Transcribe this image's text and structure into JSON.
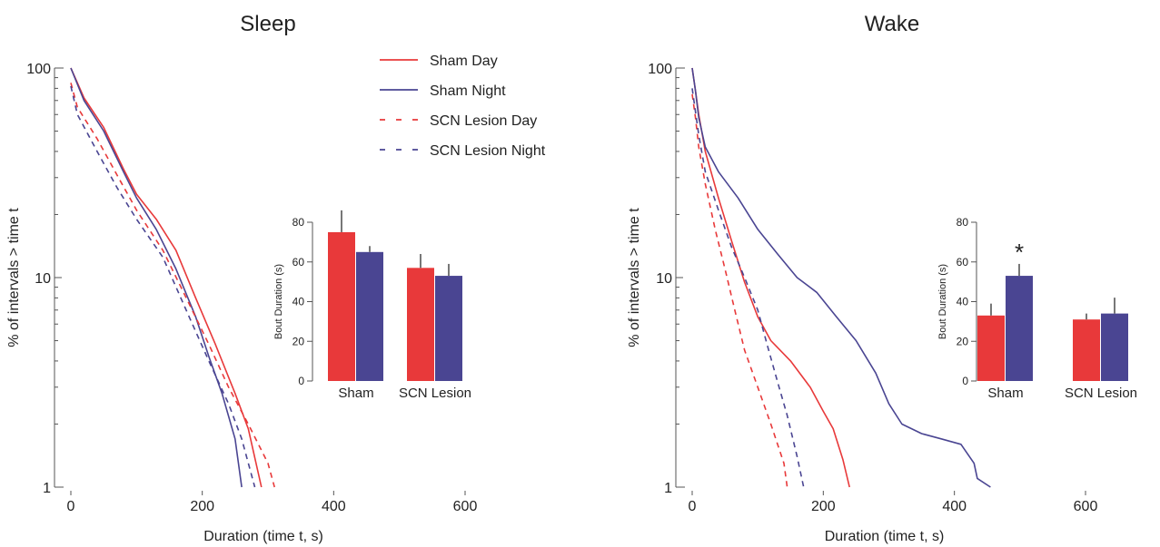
{
  "colors": {
    "day": "#e8393a",
    "night": "#4a4592",
    "axis": "#555555",
    "text": "#222222"
  },
  "legend": [
    {
      "label": "Sham Day",
      "color": "#e8393a",
      "dash": false
    },
    {
      "label": "Sham Night",
      "color": "#4a4592",
      "dash": false
    },
    {
      "label": "SCN Lesion Day",
      "color": "#e8393a",
      "dash": true
    },
    {
      "label": "SCN Lesion Night",
      "color": "#4a4592",
      "dash": true
    }
  ],
  "chart_data": [
    {
      "type": "line",
      "title": "Sleep",
      "xlabel": "Duration (time t, s)",
      "ylabel": "% of intervals > time t",
      "xlim": [
        0,
        600
      ],
      "ylim": [
        1,
        100
      ],
      "yscale": "log",
      "xticks": [
        "0",
        "200",
        "400",
        "600"
      ],
      "yticks": [
        "1",
        "10",
        "100"
      ],
      "series": [
        {
          "name": "Sham Day",
          "color": "#e8393a",
          "dash": false,
          "x": [
            0,
            20,
            50,
            80,
            100,
            130,
            160,
            190,
            220,
            250,
            270,
            290
          ],
          "y": [
            100,
            72,
            52,
            33,
            25,
            19,
            13.5,
            8,
            4.8,
            2.8,
            1.9,
            1
          ]
        },
        {
          "name": "Sham Night",
          "color": "#4a4592",
          "dash": false,
          "x": [
            0,
            20,
            50,
            80,
            100,
            130,
            160,
            190,
            210,
            230,
            250,
            260
          ],
          "y": [
            100,
            70,
            50,
            32,
            24,
            17,
            11,
            6.5,
            4.2,
            2.8,
            1.7,
            1
          ]
        },
        {
          "name": "SCN Lesion Day",
          "color": "#e8393a",
          "dash": true,
          "x": [
            0,
            10,
            40,
            70,
            100,
            140,
            180,
            210,
            240,
            270,
            300,
            310
          ],
          "y": [
            85,
            65,
            46,
            31,
            21,
            13.5,
            7.5,
            4.8,
            3,
            2,
            1.3,
            1
          ]
        },
        {
          "name": "SCN Lesion Night",
          "color": "#4a4592",
          "dash": true,
          "x": [
            0,
            10,
            40,
            70,
            100,
            140,
            180,
            210,
            240,
            260,
            280
          ],
          "y": [
            82,
            60,
            40,
            27,
            19,
            12.5,
            6.5,
            4,
            2.5,
            1.7,
            1
          ]
        }
      ],
      "inset": {
        "type": "bar",
        "ylabel": "Bout Duration (s)",
        "ylim": [
          0,
          80
        ],
        "yticks": [
          0,
          20,
          40,
          60,
          80
        ],
        "categories": [
          "Sham",
          "SCN Lesion"
        ],
        "series": [
          {
            "name": "Day",
            "color": "#e8393a",
            "values": [
              75,
              57
            ],
            "errors": [
              11,
              7
            ]
          },
          {
            "name": "Night",
            "color": "#4a4592",
            "values": [
              65,
              53
            ],
            "errors": [
              3,
              6
            ]
          }
        ],
        "annotations": []
      }
    },
    {
      "type": "line",
      "title": "Wake",
      "xlabel": "Duration (time t, s)",
      "ylabel": "% of intervals > time t",
      "xlim": [
        0,
        600
      ],
      "ylim": [
        1,
        100
      ],
      "yscale": "log",
      "xticks": [
        "0",
        "200",
        "400",
        "600"
      ],
      "yticks": [
        "1",
        "10",
        "100"
      ],
      "series": [
        {
          "name": "Sham Day",
          "color": "#e8393a",
          "dash": false,
          "x": [
            0,
            5,
            10,
            20,
            40,
            60,
            80,
            100,
            120,
            150,
            180,
            200,
            215,
            230,
            240
          ],
          "y": [
            100,
            78,
            60,
            40,
            24,
            15,
            9.5,
            6.5,
            5,
            4,
            3,
            2.3,
            1.9,
            1.35,
            1
          ]
        },
        {
          "name": "Sham Night",
          "color": "#4a4592",
          "dash": false,
          "x": [
            0,
            5,
            10,
            20,
            40,
            70,
            100,
            130,
            160,
            190,
            220,
            250,
            280,
            300,
            320,
            350,
            380,
            410,
            430,
            435,
            455
          ],
          "y": [
            100,
            78,
            58,
            42,
            32,
            24,
            17,
            13,
            10,
            8.5,
            6.5,
            5,
            3.5,
            2.5,
            2,
            1.8,
            1.7,
            1.6,
            1.3,
            1.1,
            1
          ]
        },
        {
          "name": "SCN Lesion Day",
          "color": "#e8393a",
          "dash": true,
          "x": [
            0,
            5,
            10,
            20,
            35,
            50,
            65,
            80,
            100,
            120,
            140,
            145
          ],
          "y": [
            75,
            58,
            42,
            28,
            17,
            11,
            7,
            4.5,
            3,
            2,
            1.3,
            1
          ]
        },
        {
          "name": "SCN Lesion Night",
          "color": "#4a4592",
          "dash": true,
          "x": [
            0,
            5,
            10,
            20,
            40,
            60,
            80,
            100,
            115,
            130,
            145,
            160,
            170
          ],
          "y": [
            80,
            62,
            48,
            32,
            21,
            14,
            10,
            7,
            4.7,
            3.2,
            2.2,
            1.4,
            1
          ]
        }
      ],
      "inset": {
        "type": "bar",
        "ylabel": "Bout Duration (s)",
        "ylim": [
          0,
          80
        ],
        "yticks": [
          0,
          20,
          40,
          60,
          80
        ],
        "categories": [
          "Sham",
          "SCN Lesion"
        ],
        "series": [
          {
            "name": "Day",
            "color": "#e8393a",
            "values": [
              33,
              31
            ],
            "errors": [
              6,
              3
            ]
          },
          {
            "name": "Night",
            "color": "#4a4592",
            "values": [
              53,
              34
            ],
            "errors": [
              6,
              8
            ]
          }
        ],
        "annotations": [
          {
            "text": "*",
            "category": "Sham",
            "series": "Night"
          }
        ]
      }
    }
  ]
}
